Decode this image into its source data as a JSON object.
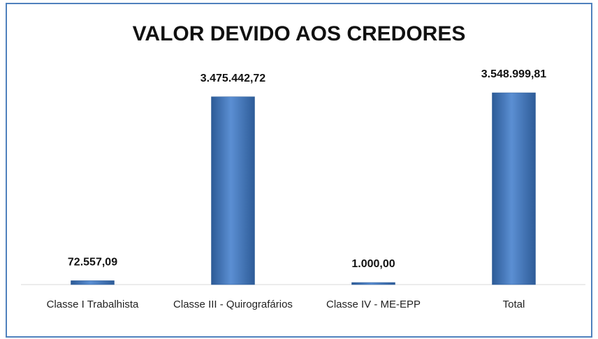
{
  "chart_data": {
    "type": "bar",
    "title": "VALOR DEVIDO AOS CREDORES",
    "categories": [
      "Classe I Trabalhista",
      "Classe III - Quirografários",
      "Classe IV - ME-EPP",
      "Total"
    ],
    "values": [
      72557.09,
      3475442.72,
      1000,
      3548999.81
    ],
    "value_labels": [
      "72.557,09",
      "3.475.442,72",
      "1.000,00",
      "3.548.999,81"
    ],
    "color": "#4f81bd"
  }
}
